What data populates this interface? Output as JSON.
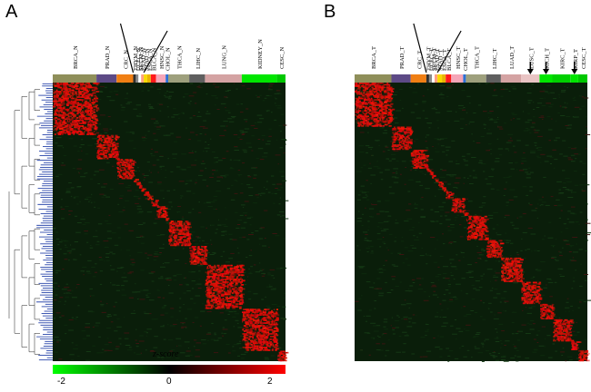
{
  "panels": {
    "a": {
      "letter": "A",
      "groups": [
        {
          "label": "BRCA_N",
          "color": "#8f8f5a",
          "w": 50
        },
        {
          "label": "PRAD_N",
          "color": "#5d4a86",
          "w": 23
        },
        {
          "label": "CRC_N",
          "color": "#f07f14",
          "w": 19
        },
        {
          "label": "THYM_N",
          "color": "#2f2f2f",
          "w": 3
        },
        {
          "label": "UCEC_N",
          "color": "#8a8a8a",
          "w": 3
        },
        {
          "label": "SKCM_N",
          "color": "#ffffff",
          "w": 3
        },
        {
          "label": "PAAD_N",
          "color": "#ff9f80",
          "w": 3
        },
        {
          "label": "STAD_N",
          "color": "#f7d900",
          "w": 4
        },
        {
          "label": "ESCA_N",
          "color": "#e8b400",
          "w": 4
        },
        {
          "label": "BLCA_N",
          "color": "#ff1a1a",
          "w": 6
        },
        {
          "label": "HNSC_N",
          "color": "#f5a6b8",
          "w": 11
        },
        {
          "label": "CHOL_N",
          "color": "#2a6fd6",
          "w": 3
        },
        {
          "label": "THCA_N",
          "color": "#9ea07d",
          "w": 24
        },
        {
          "label": "LIHC_N",
          "color": "#5f5f5f",
          "w": 18
        },
        {
          "label": "LUNG_N",
          "color": "#d4a3a3",
          "w": 42
        },
        {
          "label": "KIDNEY_N",
          "color": "#00e600",
          "w": 40
        },
        {
          "label": "CESC_N",
          "color": "#00c800",
          "w": 10
        }
      ]
    },
    "b": {
      "letter": "B",
      "groups": [
        {
          "label": "BRCA_T",
          "color": "#8f8f5a",
          "w": 40
        },
        {
          "label": "PRAD_T",
          "color": "#5d4a86",
          "w": 21
        },
        {
          "label": "CRC_T",
          "color": "#f07f14",
          "w": 17
        },
        {
          "label": "THYM_T",
          "color": "#2f2f2f",
          "w": 3
        },
        {
          "label": "UCEC_T",
          "color": "#8a8a8a",
          "w": 3
        },
        {
          "label": "SKCM_T",
          "color": "#ffffff",
          "w": 3
        },
        {
          "label": "PAAD_T",
          "color": "#ff9f80",
          "w": 3
        },
        {
          "label": "STAD_T",
          "color": "#f7d900",
          "w": 5
        },
        {
          "label": "ESCA_T",
          "color": "#e8b400",
          "w": 4
        },
        {
          "label": "BLCA_T",
          "color": "#ff1a1a",
          "w": 6
        },
        {
          "label": "HNSC_T",
          "color": "#f5a6b8",
          "w": 13
        },
        {
          "label": "CHOL_T",
          "color": "#2a6fd6",
          "w": 3
        },
        {
          "label": "THCA_T",
          "color": "#9ea07d",
          "w": 22
        },
        {
          "label": "LIHC_T",
          "color": "#5f5f5f",
          "w": 16
        },
        {
          "label": "LUAD_T",
          "color": "#d4a3a3",
          "w": 22
        },
        {
          "label": "LUSC_T",
          "color": "#e9c4c4",
          "w": 20
        },
        {
          "label": "KICH_T",
          "color": "#00e600",
          "w": 14
        },
        {
          "label": "KIRC_T",
          "color": "#00d000",
          "w": 20
        },
        {
          "label": "KIRP_T",
          "color": "#00e600",
          "w": 8
        },
        {
          "label": "CESC_T",
          "color": "#00c800",
          "w": 10
        }
      ],
      "arrows": [
        "LUSC_T",
        "KICH_T",
        "KIRP_T"
      ]
    }
  },
  "colorbar": {
    "title": "z-score",
    "ticks": [
      "-2",
      "0",
      "2"
    ],
    "low_color": "#00ff00",
    "mid_color": "#000000",
    "high_color": "#ff0000"
  }
}
